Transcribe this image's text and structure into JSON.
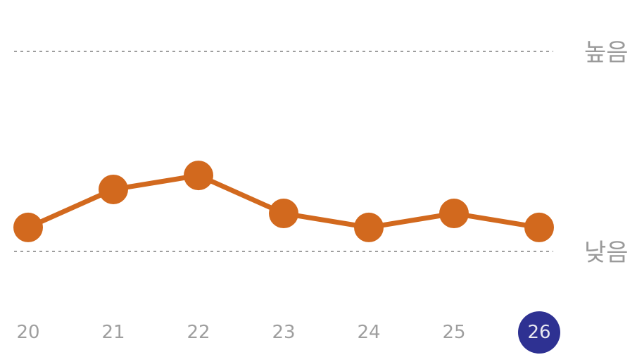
{
  "chart_data": {
    "type": "line",
    "x": [
      "20",
      "21",
      "22",
      "23",
      "24",
      "25",
      "26"
    ],
    "values": [
      0.12,
      0.31,
      0.38,
      0.19,
      0.12,
      0.19,
      0.12
    ],
    "ylim": [
      0,
      1
    ],
    "y_reference_lines": [
      {
        "label": "높음",
        "value": 1
      },
      {
        "label": "낮음",
        "value": 0
      }
    ],
    "selected_x": "26",
    "grid": false,
    "colors": {
      "line": "#d2691e",
      "point": "#d2691e",
      "reference_line": "#9e9e9e",
      "selected_background": "#2e3192",
      "tick_label": "#9e9e9e",
      "selected_tick_label": "#e8e8f0"
    }
  }
}
